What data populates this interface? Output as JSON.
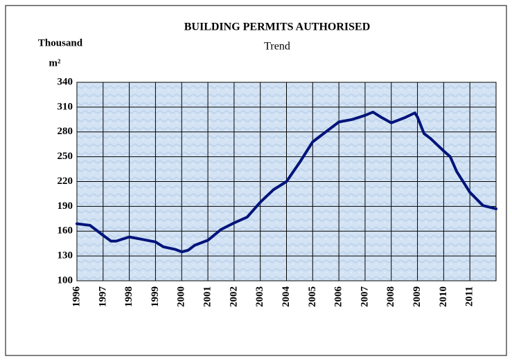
{
  "chart_data": {
    "type": "line",
    "title": "BUILDING  PERMITS  AUTHORISED",
    "subtitle": "Trend",
    "ylabel": [
      "Thousand",
      "m²"
    ],
    "series": [
      {
        "name": "Trend",
        "color": "#00147a",
        "x": [
          1996.0,
          1996.5,
          1997.0,
          1997.3,
          1997.5,
          1998.0,
          1998.5,
          1999.0,
          1999.3,
          1999.75,
          2000.0,
          2000.25,
          2000.5,
          2001.0,
          2001.5,
          2002.0,
          2002.5,
          2003.0,
          2003.5,
          2004.0,
          2004.5,
          2005.0,
          2005.5,
          2006.0,
          2006.5,
          2007.0,
          2007.3,
          2007.6,
          2008.0,
          2008.5,
          2008.9,
          2009.0,
          2009.25,
          2009.5,
          2010.0,
          2010.25,
          2010.5,
          2011.0,
          2011.5,
          2012.0
        ],
        "values": [
          169,
          167,
          155,
          148,
          148,
          153,
          150,
          147,
          141,
          138,
          135,
          137,
          143,
          149,
          162,
          170,
          177,
          195,
          210,
          220,
          243,
          268,
          280,
          292,
          295,
          300,
          304,
          298,
          291,
          297,
          303,
          298,
          278,
          272,
          257,
          250,
          232,
          207,
          191,
          187
        ]
      }
    ],
    "xlim": [
      1996,
      2012
    ],
    "xticks": [
      1996,
      1997,
      1998,
      1999,
      2000,
      2001,
      2002,
      2003,
      2004,
      2005,
      2006,
      2007,
      2008,
      2009,
      2010,
      2011
    ],
    "ylim": [
      100,
      340
    ],
    "yticks": [
      100,
      130,
      160,
      190,
      220,
      250,
      280,
      310,
      340
    ],
    "grid": true
  }
}
